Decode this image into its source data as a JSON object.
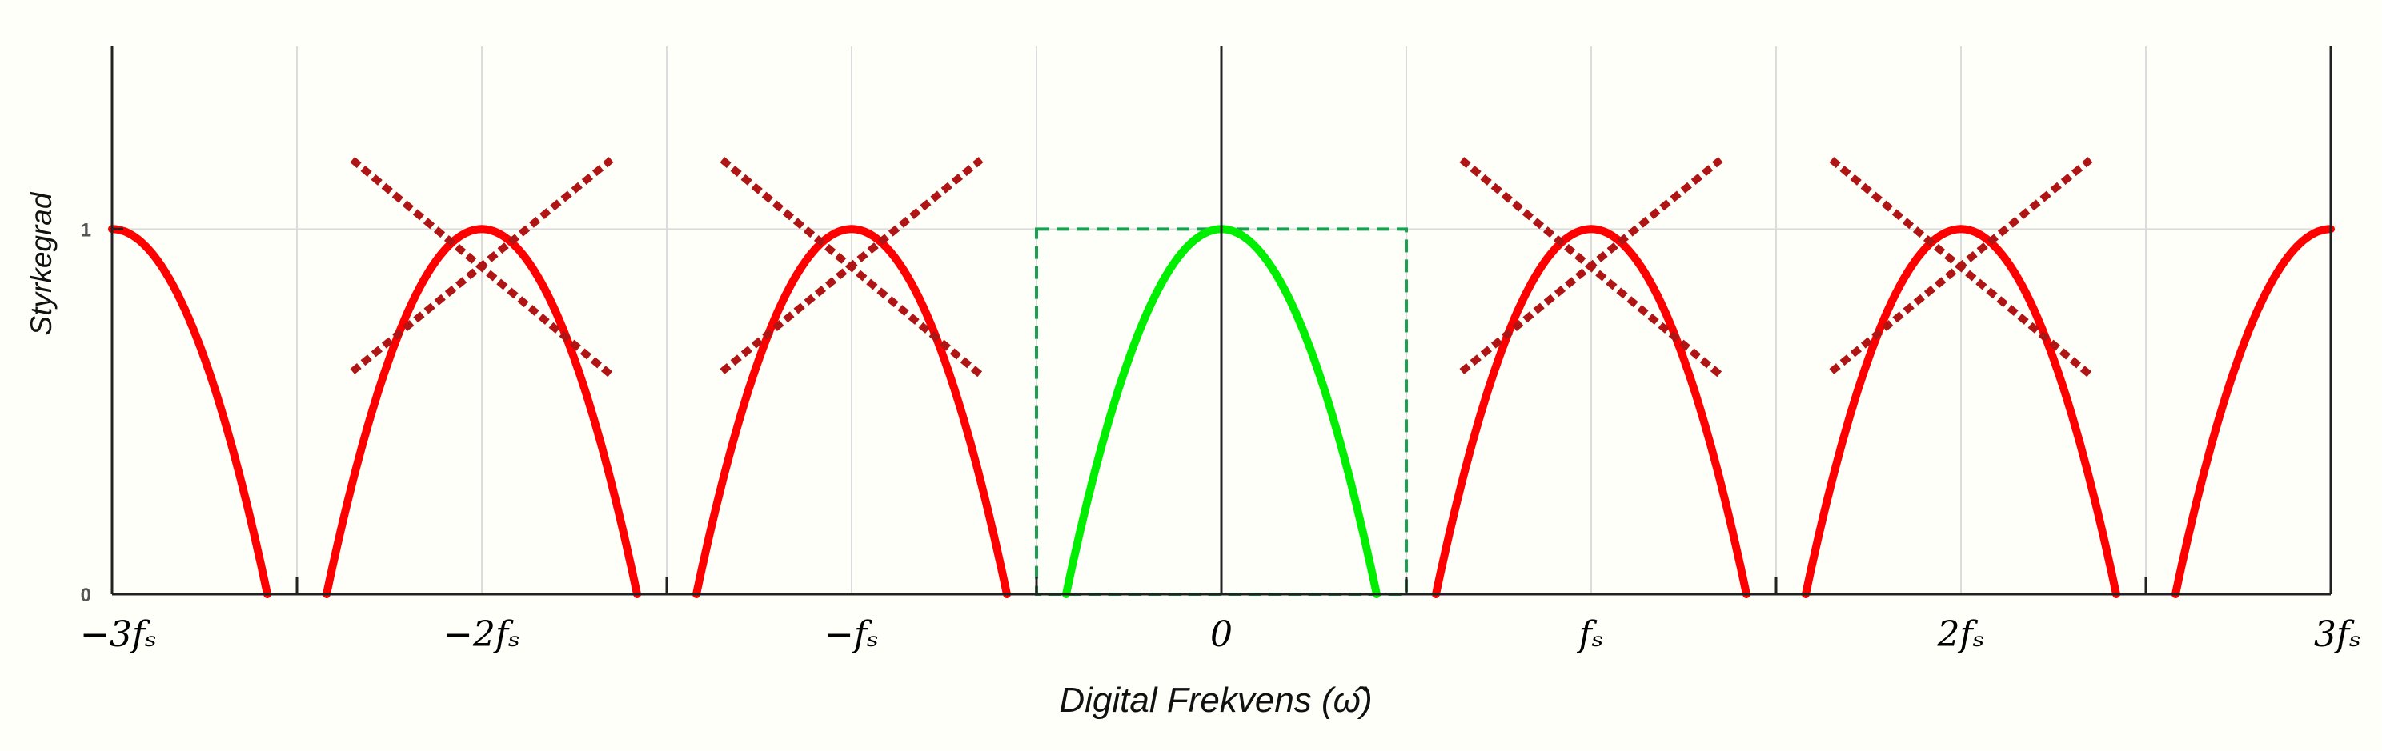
{
  "chart_data": {
    "type": "line",
    "title": "",
    "xlabel": "Digital Frekvens (ω̂)",
    "ylabel": "Styrkegrad",
    "x_unit": "f_s",
    "xlim": [
      -3,
      3
    ],
    "ylim": [
      0,
      1.5
    ],
    "x_ticks": [
      {
        "x": -3,
        "label": "−3𝑓ₛ"
      },
      {
        "x": -2,
        "label": "−2𝑓ₛ"
      },
      {
        "x": -1,
        "label": "−𝑓ₛ"
      },
      {
        "x": 0,
        "label": "0"
      },
      {
        "x": 1,
        "label": "𝑓ₛ"
      },
      {
        "x": 2,
        "label": "2𝑓ₛ"
      },
      {
        "x": 3,
        "label": "3𝑓ₛ"
      }
    ],
    "y_ticks": [
      {
        "y": 0,
        "label": "0"
      },
      {
        "y": 1,
        "label": "1"
      }
    ],
    "grid": true,
    "lobe_halfwidth": 0.42,
    "lobes": [
      {
        "center": -3,
        "color": "#ff0000",
        "role": "alias"
      },
      {
        "center": -2,
        "color": "#ff0000",
        "role": "alias"
      },
      {
        "center": -1,
        "color": "#ff0000",
        "role": "alias"
      },
      {
        "center": 0,
        "color": "#00ee00",
        "role": "baseband"
      },
      {
        "center": 1,
        "color": "#ff0000",
        "role": "alias"
      },
      {
        "center": 2,
        "color": "#ff0000",
        "role": "alias"
      },
      {
        "center": 3,
        "color": "#ff0000",
        "role": "alias"
      }
    ],
    "crossed_out_centers": [
      -2,
      -1,
      1,
      2
    ],
    "cross_color": "#b01515",
    "passband": {
      "x": [
        -0.5,
        0.5
      ],
      "height": 1,
      "color": "#1aa050"
    }
  }
}
